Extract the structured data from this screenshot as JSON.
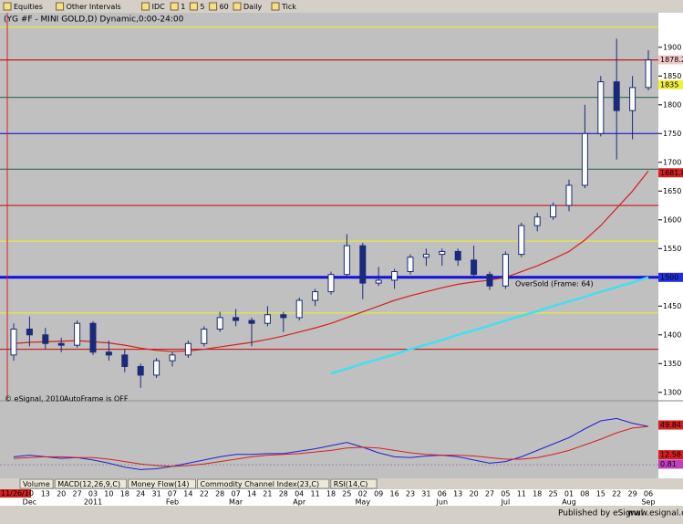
{
  "toolbar": {
    "items": [
      "Equities",
      "Other Intervals",
      "IDC",
      "1",
      "5",
      "60",
      "Daily",
      "Tick"
    ]
  },
  "chart_data": {
    "type": "candlestick",
    "title": "(YG #F - MINI GOLD,D) Dynamic,0:00-24:00",
    "start_date_label": "11/26/10",
    "categories": [
      null,
      null,
      "13",
      "20",
      "27",
      "03",
      "10",
      "18",
      "24",
      "31",
      "07",
      "14",
      "22",
      "28",
      "07",
      "14",
      "21",
      "28",
      "04",
      "11",
      "18",
      "25",
      "02",
      "09",
      "16",
      "23",
      "31",
      "06",
      "13",
      "20",
      "27",
      "05",
      "11",
      "18",
      "25",
      "01",
      "08",
      "15",
      "22",
      "29",
      "06"
    ],
    "months": [
      null,
      "Dec",
      null,
      null,
      null,
      "2011",
      null,
      null,
      null,
      null,
      "Feb",
      null,
      null,
      null,
      "Mar",
      null,
      null,
      null,
      "Apr",
      null,
      null,
      null,
      "May",
      null,
      null,
      null,
      null,
      "Jun",
      null,
      null,
      null,
      "Jul",
      null,
      null,
      null,
      "Aug",
      null,
      null,
      null,
      null,
      "Sep"
    ],
    "open": [
      1365,
      1410,
      1400,
      1385,
      1382,
      1420,
      1370,
      1365,
      1345,
      1330,
      1355,
      1365,
      1385,
      1410,
      1430,
      1425,
      1420,
      1435,
      1430,
      1460,
      1475,
      1505,
      1555,
      1490,
      1495,
      1510,
      1535,
      1540,
      1545,
      1530,
      1505,
      1485,
      1540,
      1590,
      1605,
      1625,
      1660,
      1750,
      1840,
      1790,
      1830
    ],
    "high": [
      1420,
      1432,
      1412,
      1395,
      1425,
      1424,
      1390,
      1375,
      1350,
      1360,
      1370,
      1390,
      1415,
      1440,
      1445,
      1430,
      1450,
      1440,
      1465,
      1480,
      1510,
      1575,
      1560,
      1518,
      1515,
      1540,
      1550,
      1550,
      1550,
      1555,
      1510,
      1545,
      1595,
      1612,
      1630,
      1670,
      1800,
      1850,
      1915,
      1850,
      1895
    ],
    "low": [
      1355,
      1380,
      1375,
      1370,
      1378,
      1365,
      1355,
      1335,
      1308,
      1325,
      1345,
      1360,
      1380,
      1405,
      1415,
      1380,
      1415,
      1405,
      1425,
      1450,
      1470,
      1500,
      1462,
      1485,
      1480,
      1505,
      1520,
      1520,
      1520,
      1500,
      1478,
      1480,
      1535,
      1580,
      1600,
      1615,
      1655,
      1745,
      1705,
      1740,
      1825
    ],
    "close": [
      1410,
      1400,
      1385,
      1382,
      1420,
      1370,
      1365,
      1345,
      1330,
      1355,
      1365,
      1385,
      1410,
      1430,
      1425,
      1420,
      1435,
      1430,
      1460,
      1475,
      1505,
      1555,
      1490,
      1495,
      1510,
      1535,
      1540,
      1545,
      1530,
      1505,
      1485,
      1540,
      1590,
      1605,
      1625,
      1660,
      1750,
      1840,
      1790,
      1830,
      1878
    ],
    "up_color": "#ffffff",
    "down_color": "#1a2a7a",
    "wick_color": "#1a2a7a",
    "series": [
      {
        "name": "MA",
        "color": "#d42020",
        "values": [
          1385,
          1387,
          1388,
          1389,
          1390,
          1388,
          1386,
          1382,
          1377,
          1373,
          1371,
          1372,
          1375,
          1379,
          1383,
          1387,
          1392,
          1398,
          1405,
          1412,
          1420,
          1430,
          1440,
          1450,
          1460,
          1468,
          1475,
          1482,
          1488,
          1492,
          1495,
          1500,
          1510,
          1520,
          1532,
          1545,
          1565,
          1590,
          1620,
          1650,
          1685
        ]
      },
      {
        "name": "Trend",
        "color": "#40e0f0",
        "values": [
          null,
          null,
          null,
          null,
          null,
          null,
          null,
          null,
          null,
          null,
          null,
          null,
          null,
          null,
          null,
          null,
          null,
          null,
          null,
          null,
          1333,
          1341,
          1350,
          1358,
          1366,
          1375,
          1383,
          1391,
          1400,
          1408,
          1416,
          1425,
          1433,
          1441,
          1450,
          1458,
          1466,
          1475,
          1483,
          1491,
          1500
        ]
      }
    ],
    "levels": [
      {
        "value": 1935,
        "color": "#e8e840"
      },
      {
        "value": 1878,
        "color": "#c81818"
      },
      {
        "value": 1813,
        "color": "#407060"
      },
      {
        "value": 1750,
        "color": "#1818d0"
      },
      {
        "value": 1688,
        "color": "#407060"
      },
      {
        "value": 1625,
        "color": "#c81818"
      },
      {
        "value": 1563,
        "color": "#e8e840"
      },
      {
        "value": 1500,
        "color": "#1010e0"
      },
      {
        "value": 1438,
        "color": "#e8e840"
      },
      {
        "value": 1375,
        "color": "#c81818"
      }
    ],
    "price_markers": [
      {
        "value": 1878.2,
        "color": "#f0c8c8"
      },
      {
        "value": 1835,
        "color": "#f0f040"
      },
      {
        "value": 1681.8,
        "color": "#d42020"
      },
      {
        "value": 1500,
        "color": "#2030e0"
      }
    ],
    "ylim": [
      1287,
      1960
    ],
    "yticks": [
      1300,
      1350,
      1400,
      1450,
      1500,
      1550,
      1600,
      1650,
      1700,
      1750,
      1800,
      1850,
      1900
    ],
    "annotations": [
      "OverSold (Frame: 64)",
      "AutoFrame is OFF",
      "© eSignal, 2010"
    ],
    "indicator": {
      "ylim": [
        -17,
        79
      ],
      "series": [
        {
          "name": "MACD",
          "color": "#2020d0",
          "values": [
            10,
            12,
            10,
            8,
            9,
            6,
            2,
            -3,
            -6,
            -5,
            -2,
            2,
            6,
            10,
            13,
            13,
            14,
            14,
            17,
            20,
            24,
            28,
            22,
            15,
            10,
            9,
            11,
            12,
            10,
            6,
            2,
            4,
            10,
            18,
            26,
            34,
            45,
            55,
            58,
            52,
            48
          ]
        },
        {
          "name": "Signal",
          "color": "#d42020",
          "values": [
            8,
            9,
            10,
            10,
            9,
            9,
            7,
            4,
            1,
            -1,
            -2,
            -1,
            1,
            4,
            7,
            10,
            12,
            13,
            14,
            16,
            18,
            21,
            22,
            21,
            18,
            15,
            13,
            12,
            12,
            11,
            9,
            7,
            7,
            9,
            13,
            18,
            25,
            32,
            40,
            46,
            48
          ]
        }
      ],
      "labels": [
        {
          "value": 49.84,
          "color": "#d42020"
        },
        {
          "value": 0.81,
          "color": "#c040c0"
        },
        {
          "value": 12.58,
          "color": "#d42020"
        }
      ]
    },
    "tabs": [
      "Volume",
      "MACD(12,26,9,C)",
      "Money Flow(14)",
      "Commodity Channel Index(23,C)",
      "RSI(14,C)"
    ]
  },
  "status": {
    "published": "Published by eSignal",
    "url": "www.esignal.com"
  }
}
